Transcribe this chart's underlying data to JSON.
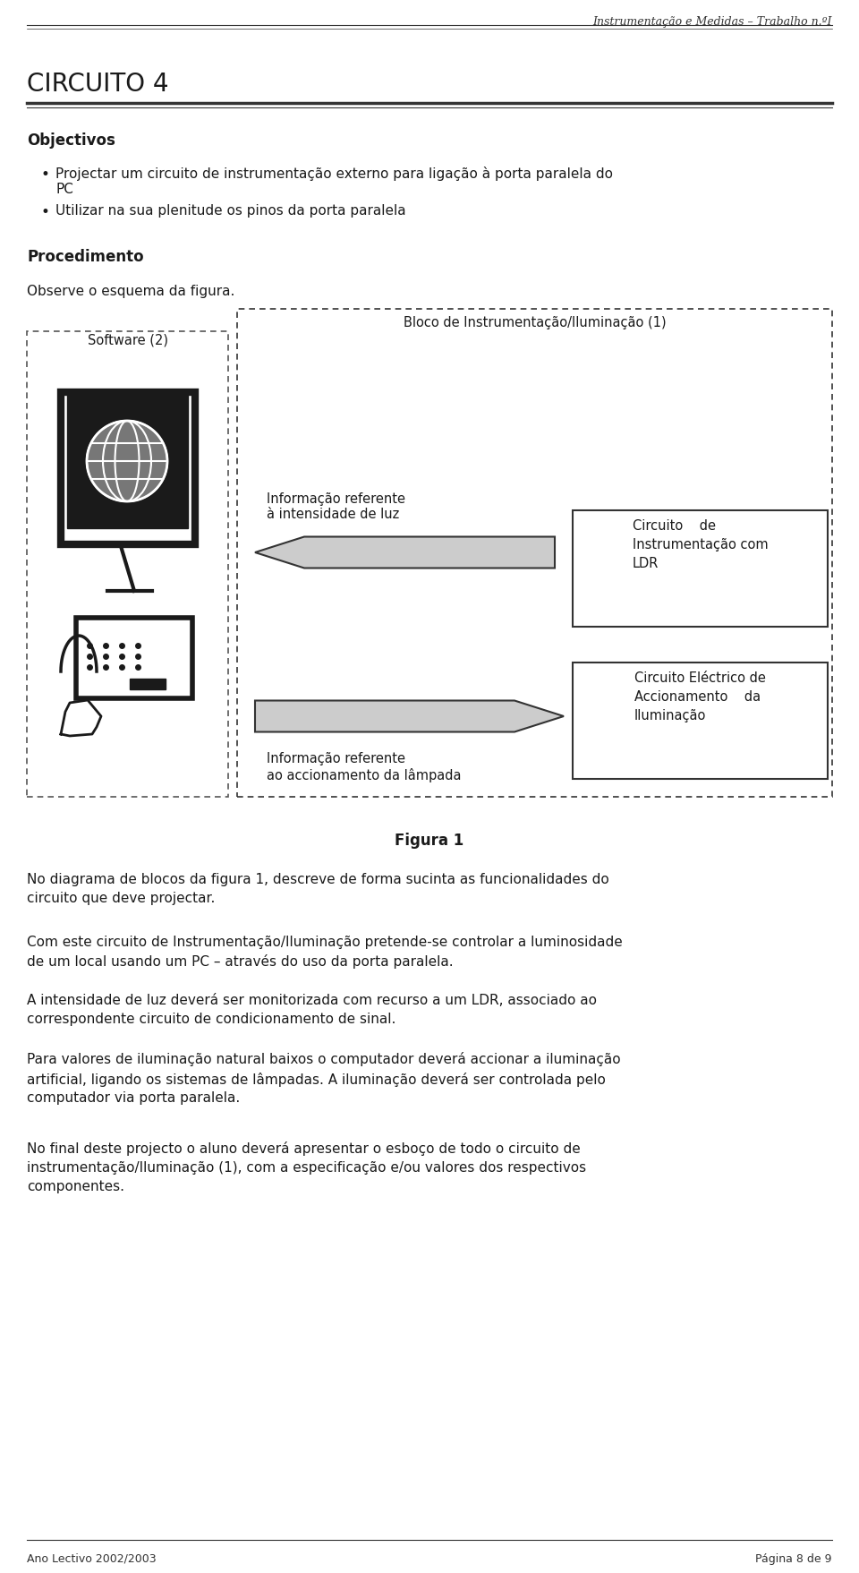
{
  "header_text": "Instrumentação e Medidas – Trabalho n.ºI",
  "title": "CIRCUITO 4",
  "section1": "Objectivos",
  "bullet1": "Projectar um circuito de instrumentação externo para ligação à porta paralela do\nPC",
  "bullet2": "Utilizar na sua plenitude os pinos da porta paralela",
  "section2": "Procedimento",
  "observe": "Observe o esquema da figura.",
  "software_label": "Software (2)",
  "bloco_label": "Bloco de Instrumentação/Iluminação (1)",
  "info1": "Informação referente\nà intensidade de luz",
  "info2": "Informação referente\nao accionamento da lâmpada",
  "box1": "Circuito    de\nInstrumentação com\nLDR",
  "box2": "Circuito Eléctrico de\nAccionamento    da\nIluminação",
  "figura_label": "Figura 1",
  "para1": "No diagrama de blocos da figura 1, descreve de forma sucinta as funcionalidades do\ncircuito que deve projectar.",
  "para2": "Com este circuito de Instrumentação/Iluminação pretende-se controlar a luminosidade\nde um local usando um PC – através do uso da porta paralela.",
  "para3": "A intensidade de luz deverá ser monitorizada com recurso a um LDR, associado ao\ncorrespondente circuito de condicionamento de sinal.",
  "para4": "Para valores de iluminação natural baixos o computador deverá accionar a iluminação\nartificial, ligando os sistemas de lâmpadas. A iluminação deverá ser controlada pelo\ncomputador via porta paralela.",
  "para5": "No final deste projecto o aluno deverá apresentar o esboço de todo o circuito de\ninstrumentação/Iluminação (1), com a especificação e/ou valores dos respectivos\ncomponentes.",
  "footer_left": "Ano Lectivo 2002/2003",
  "footer_right": "Página 8 de 9",
  "bg_color": "#ffffff",
  "text_color": "#1a1a1a"
}
